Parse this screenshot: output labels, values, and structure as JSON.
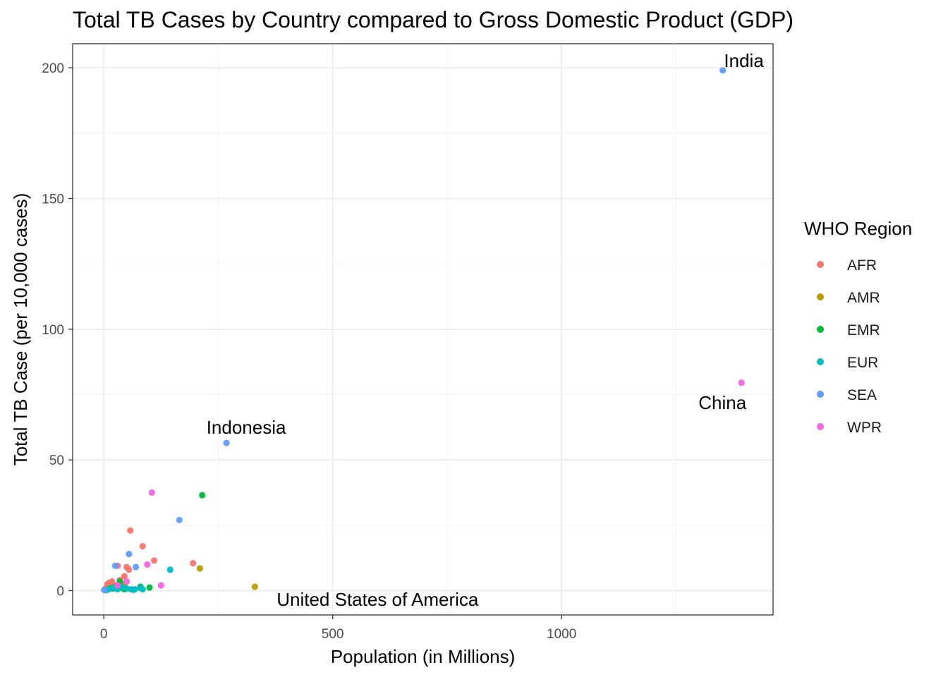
{
  "chart_data": {
    "type": "scatter",
    "title": "Total TB Cases by Country compared to Gross Domestic Product (GDP)",
    "xlabel": "Population (in Millions)",
    "ylabel": "Total TB Case (per 10,000 cases)",
    "xlim": [
      -68,
      1462
    ],
    "ylim": [
      -9.3,
      209.2
    ],
    "xticks": [
      0,
      500,
      1000
    ],
    "yticks": [
      0,
      50,
      100,
      150,
      200
    ],
    "grid": true,
    "legend": {
      "title": "WHO Region",
      "placement": "right"
    },
    "series": [
      {
        "name": "AFR",
        "color": "#F8766D",
        "points": [
          [
            2,
            0.5
          ],
          [
            5,
            1
          ],
          [
            8,
            2.5
          ],
          [
            10,
            1.5
          ],
          [
            12,
            3
          ],
          [
            15,
            2
          ],
          [
            18,
            3.5
          ],
          [
            20,
            1
          ],
          [
            25,
            2
          ],
          [
            30,
            9.5
          ],
          [
            35,
            4
          ],
          [
            40,
            2.5
          ],
          [
            45,
            5.5
          ],
          [
            50,
            9
          ],
          [
            55,
            8
          ],
          [
            58,
            23
          ],
          [
            85,
            17
          ],
          [
            110,
            11.5
          ],
          [
            195,
            10.5
          ]
        ]
      },
      {
        "name": "AMR",
        "color": "#B79F00",
        "points": [
          [
            10,
            0.5
          ],
          [
            20,
            1
          ],
          [
            30,
            1.5
          ],
          [
            45,
            2
          ],
          [
            210,
            8.5
          ],
          [
            330,
            1.5
          ]
        ]
      },
      {
        "name": "EMR",
        "color": "#00BA38",
        "points": [
          [
            5,
            0.3
          ],
          [
            10,
            0.5
          ],
          [
            15,
            1
          ],
          [
            20,
            0.8
          ],
          [
            25,
            1.5
          ],
          [
            30,
            2
          ],
          [
            35,
            3.5
          ],
          [
            40,
            1
          ],
          [
            45,
            0.5
          ],
          [
            80,
            1.5
          ],
          [
            100,
            1.2
          ],
          [
            215,
            36.5
          ]
        ]
      },
      {
        "name": "EUR",
        "color": "#00BFC4",
        "points": [
          [
            5,
            0.2
          ],
          [
            10,
            0.5
          ],
          [
            20,
            1
          ],
          [
            30,
            0.5
          ],
          [
            40,
            1.5
          ],
          [
            50,
            0.8
          ],
          [
            60,
            0.5
          ],
          [
            65,
            0.3
          ],
          [
            68,
            0.5
          ],
          [
            80,
            1
          ],
          [
            85,
            0.5
          ],
          [
            145,
            8
          ]
        ]
      },
      {
        "name": "SEA",
        "color": "#619CFF",
        "points": [
          [
            1,
            0.2
          ],
          [
            25,
            9.5
          ],
          [
            55,
            14
          ],
          [
            70,
            9
          ],
          [
            165,
            27
          ],
          [
            268,
            56.5
          ],
          [
            1352,
            199
          ]
        ]
      },
      {
        "name": "WPR",
        "color": "#F564E3",
        "points": [
          [
            30,
            2
          ],
          [
            50,
            3.5
          ],
          [
            95,
            10
          ],
          [
            105,
            37.5
          ],
          [
            125,
            2
          ],
          [
            1393,
            79.5
          ]
        ]
      }
    ],
    "annotations": [
      {
        "text": "India",
        "x": 1352,
        "y": 199
      },
      {
        "text": "China",
        "x": 1393,
        "y": 79.5
      },
      {
        "text": "Indonesia",
        "x": 268,
        "y": 56.5
      },
      {
        "text": "United States of America",
        "x": 330,
        "y": 1.5
      }
    ]
  }
}
